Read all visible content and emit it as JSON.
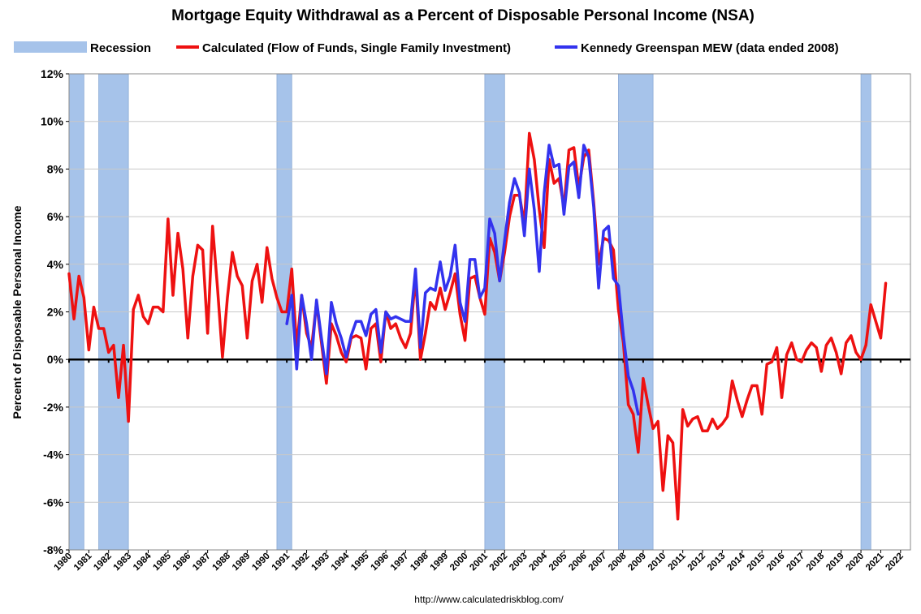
{
  "chart_data": {
    "type": "line",
    "title": "Mortgage Equity Withdrawal as a Percent of Disposable Personal Income (NSA)",
    "ylabel": "Percent of Disposable Personal Income",
    "xlabel": "",
    "source": "http://www.calculatedriskblog.com/",
    "ylim": [
      -8,
      12
    ],
    "xlim": [
      1980,
      2022.5
    ],
    "yticks": [
      -8,
      -6,
      -4,
      -2,
      0,
      2,
      4,
      6,
      8,
      10,
      12
    ],
    "ytick_labels": [
      "-8%",
      "-6%",
      "-4%",
      "-2%",
      "0%",
      "2%",
      "4%",
      "6%",
      "8%",
      "10%",
      "12%"
    ],
    "xtick_labels": [
      "1980",
      "1981",
      "1982",
      "1983",
      "1984",
      "1985",
      "1986",
      "1987",
      "1988",
      "1989",
      "1990",
      "1991",
      "1992",
      "1993",
      "1994",
      "1995",
      "1996",
      "1997",
      "1998",
      "1999",
      "2000",
      "2001",
      "2002",
      "2003",
      "2004",
      "2005",
      "2006",
      "2007",
      "2008",
      "2009",
      "2010",
      "2011",
      "2012",
      "2013",
      "2014",
      "2015",
      "2016",
      "2017",
      "2018",
      "2019",
      "2020",
      "2021",
      "2022"
    ],
    "grid": true,
    "legend_position": "top",
    "recession_label": "Recession",
    "recession_color": "#a6c3ea",
    "recessions": [
      [
        1980.0,
        1980.75
      ],
      [
        1981.5,
        1983.0
      ],
      [
        1990.5,
        1991.25
      ],
      [
        2001.0,
        2002.0
      ],
      [
        2007.75,
        2009.5
      ],
      [
        2020.0,
        2020.5
      ]
    ],
    "series": [
      {
        "name": "Calculated (Flow of Funds, Single Family Investment)",
        "color": "#ee1111",
        "x_start": 1980.0,
        "x_step": 0.25,
        "values": [
          3.6,
          1.7,
          3.5,
          2.6,
          0.4,
          2.2,
          1.3,
          1.3,
          0.3,
          0.6,
          -1.6,
          0.6,
          -2.6,
          2.1,
          2.7,
          1.8,
          1.5,
          2.2,
          2.2,
          2.0,
          5.9,
          2.7,
          5.3,
          3.8,
          0.9,
          3.5,
          4.8,
          4.6,
          1.1,
          5.6,
          3.0,
          0.1,
          2.6,
          4.5,
          3.5,
          3.1,
          0.9,
          3.3,
          4.0,
          2.4,
          4.7,
          3.4,
          2.6,
          2.0,
          2.0,
          3.8,
          0.5,
          2.7,
          1.1,
          0.5,
          2.4,
          0.7,
          -1.0,
          1.5,
          1.0,
          0.3,
          -0.1,
          0.9,
          1.0,
          0.9,
          -0.4,
          1.3,
          1.5,
          -0.1,
          2.0,
          1.3,
          1.5,
          0.9,
          0.5,
          1.1,
          3.5,
          0.0,
          1.1,
          2.4,
          2.1,
          3.0,
          2.1,
          2.8,
          3.6,
          1.9,
          0.8,
          3.4,
          3.5,
          2.6,
          1.9,
          5.1,
          4.5,
          3.3,
          4.5,
          6.0,
          6.9,
          6.9,
          5.7,
          9.5,
          8.4,
          6.3,
          4.7,
          8.4,
          7.4,
          7.6,
          6.4,
          8.8,
          8.9,
          7.2,
          8.5,
          8.8,
          6.6,
          4.0,
          5.1,
          5.0,
          4.6,
          2.1,
          0.7,
          -1.9,
          -2.3,
          -3.9,
          -0.8,
          -1.9,
          -2.9,
          -2.6,
          -5.5,
          -3.2,
          -3.5,
          -6.7,
          -2.1,
          -2.8,
          -2.5,
          -2.4,
          -3.0,
          -3.0,
          -2.5,
          -2.9,
          -2.7,
          -2.4,
          -0.9,
          -1.7,
          -2.4,
          -1.7,
          -1.1,
          -1.1,
          -2.3,
          -0.2,
          -0.1,
          0.5,
          -1.6,
          0.2,
          0.7,
          0.0,
          -0.1,
          0.4,
          0.7,
          0.5,
          -0.5,
          0.6,
          0.9,
          0.3,
          -0.6,
          0.7,
          1.0,
          0.3,
          0.0,
          0.6,
          2.3,
          1.6,
          0.9,
          3.2
        ]
      },
      {
        "name": "Kennedy Greenspan MEW (data ended 2008)",
        "color": "#3333ee",
        "x_start": 1991.0,
        "x_step": 0.25,
        "values": [
          1.5,
          2.7,
          -0.4,
          2.7,
          1.5,
          0.0,
          2.5,
          0.9,
          -0.6,
          2.4,
          1.5,
          0.9,
          0.1,
          1.0,
          1.6,
          1.6,
          1.0,
          1.9,
          2.1,
          0.3,
          2.0,
          1.7,
          1.8,
          1.7,
          1.6,
          1.6,
          3.8,
          0.5,
          2.8,
          3.0,
          2.9,
          4.1,
          2.9,
          3.5,
          4.8,
          2.4,
          1.6,
          4.2,
          4.2,
          2.6,
          3.0,
          5.9,
          5.3,
          3.3,
          5.0,
          6.6,
          7.6,
          7.0,
          5.2,
          8.0,
          6.3,
          3.7,
          7.0,
          9.0,
          8.1,
          8.2,
          6.1,
          8.1,
          8.3,
          6.8,
          9.0,
          8.5,
          6.4,
          3.0,
          5.4,
          5.6,
          3.4,
          3.1,
          1.0,
          -0.7,
          -1.3,
          -2.3
        ]
      }
    ]
  }
}
